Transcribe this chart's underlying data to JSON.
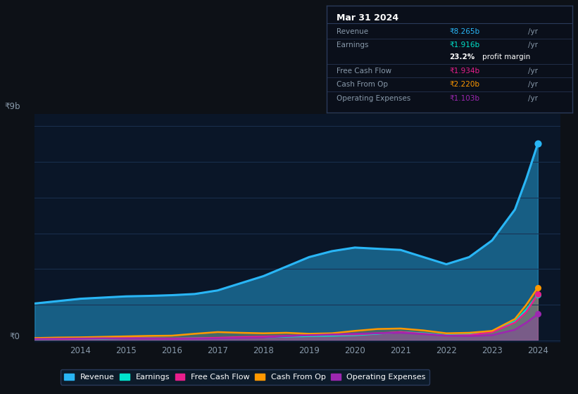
{
  "background_color": "#0d1117",
  "chart_bg_color": "#0a1628",
  "ylabel_top": "₹9b",
  "ylabel_zero": "₹0",
  "years": [
    2013,
    2013.5,
    2014,
    2014.5,
    2015,
    2015.5,
    2016,
    2016.5,
    2017,
    2017.5,
    2018,
    2018.5,
    2019,
    2019.5,
    2020,
    2020.5,
    2021,
    2021.5,
    2022,
    2022.5,
    2023,
    2023.5,
    2023.75,
    2024
  ],
  "revenue": [
    1.55,
    1.65,
    1.75,
    1.8,
    1.85,
    1.87,
    1.9,
    1.95,
    2.1,
    2.4,
    2.7,
    3.1,
    3.5,
    3.75,
    3.9,
    3.85,
    3.8,
    3.5,
    3.2,
    3.5,
    4.2,
    5.5,
    6.8,
    8.265
  ],
  "earnings": [
    0.05,
    0.06,
    0.07,
    0.08,
    0.09,
    0.09,
    0.08,
    0.09,
    0.1,
    0.12,
    0.13,
    0.16,
    0.18,
    0.2,
    0.22,
    0.28,
    0.35,
    0.3,
    0.22,
    0.25,
    0.38,
    0.8,
    1.3,
    1.916
  ],
  "free_cash_flow": [
    0.05,
    0.06,
    0.07,
    0.09,
    0.1,
    0.09,
    0.08,
    0.09,
    0.11,
    0.14,
    0.16,
    0.19,
    0.22,
    0.24,
    0.25,
    0.3,
    0.35,
    0.28,
    0.2,
    0.22,
    0.35,
    0.75,
    1.2,
    1.934
  ],
  "cash_from_op": [
    0.1,
    0.12,
    0.13,
    0.15,
    0.17,
    0.19,
    0.2,
    0.28,
    0.35,
    0.32,
    0.3,
    0.32,
    0.28,
    0.3,
    0.4,
    0.48,
    0.5,
    0.42,
    0.3,
    0.32,
    0.4,
    0.9,
    1.5,
    2.22
  ],
  "operating_exp": [
    0.06,
    0.07,
    0.08,
    0.09,
    0.08,
    0.07,
    0.06,
    0.07,
    0.08,
    0.1,
    0.12,
    0.18,
    0.22,
    0.25,
    0.28,
    0.3,
    0.32,
    0.26,
    0.2,
    0.18,
    0.22,
    0.45,
    0.75,
    1.103
  ],
  "revenue_color": "#29b6f6",
  "earnings_color": "#00e5cc",
  "fcf_color": "#e91e8c",
  "cashop_color": "#ff9800",
  "opex_color": "#9c27b0",
  "xlim": [
    2013,
    2024.5
  ],
  "ylim": [
    -0.1,
    9.5
  ],
  "grid_color": "#1a3050",
  "tick_color": "#8899aa",
  "legend_items": [
    "Revenue",
    "Earnings",
    "Free Cash Flow",
    "Cash From Op",
    "Operating Expenses"
  ],
  "infobox": {
    "title": "Mar 31 2024",
    "rows": [
      {
        "label": "Revenue",
        "value": "₹8.265b",
        "color": "#29b6f6"
      },
      {
        "label": "Earnings",
        "value": "₹1.916b",
        "color": "#00e5cc"
      },
      {
        "label": "",
        "value": "23.2% profit margin",
        "color": "#ffffff"
      },
      {
        "label": "Free Cash Flow",
        "value": "₹1.934b",
        "color": "#e91e8c"
      },
      {
        "label": "Cash From Op",
        "value": "₹2.220b",
        "color": "#ff9800"
      },
      {
        "label": "Operating Expenses",
        "value": "₹1.103b",
        "color": "#9c27b0"
      }
    ]
  }
}
